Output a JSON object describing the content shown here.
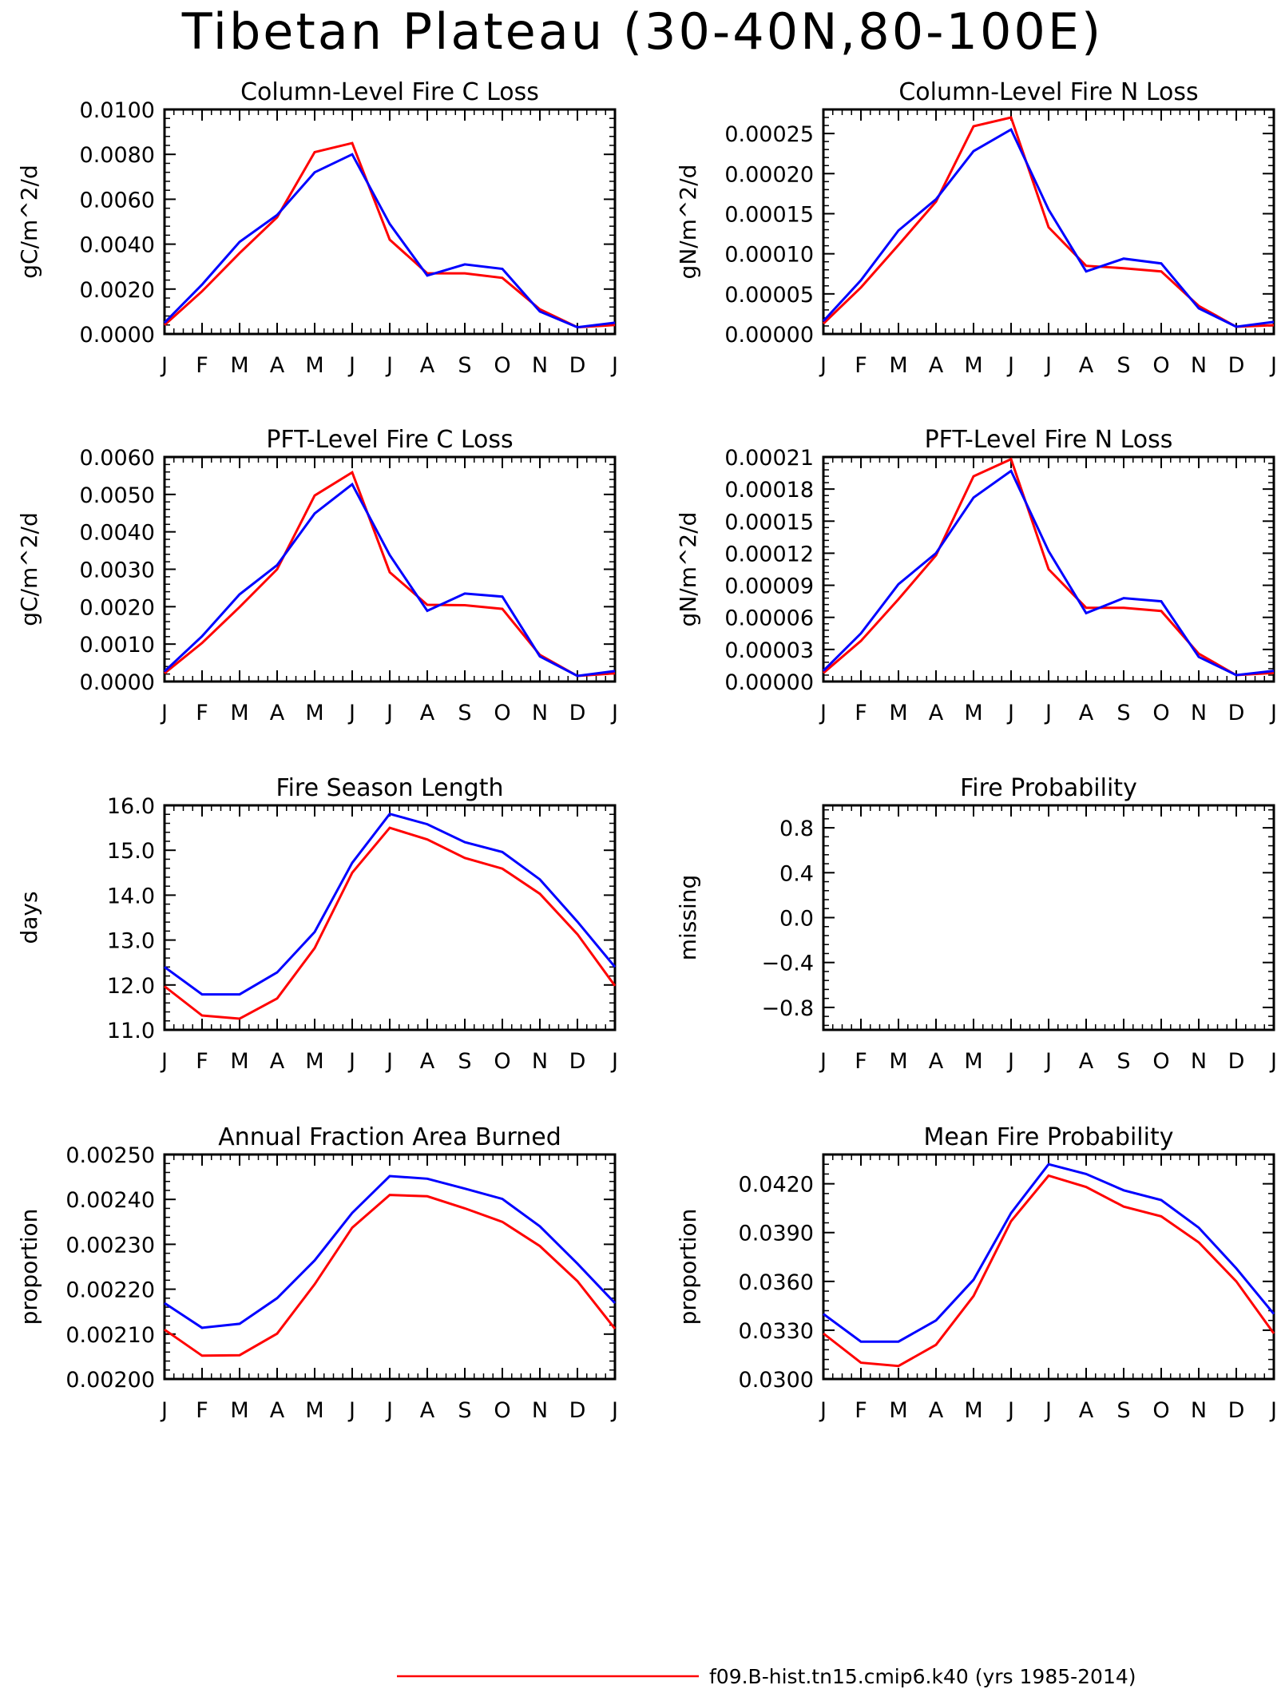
{
  "title": "Tibetan Plateau (30-40N,80-100E)",
  "colors": {
    "red": "#ff0000",
    "blue": "#0000ff"
  },
  "legend": {
    "red_label": "f09.B-hist.tn15.cmip6.k40 (yrs 1985-2014)"
  },
  "chart_data": [
    {
      "type": "line",
      "title": "Column-Level Fire C Loss",
      "ylabel": "gC/m^2/d",
      "categories": [
        "J",
        "F",
        "M",
        "A",
        "M",
        "J",
        "J",
        "A",
        "S",
        "O",
        "N",
        "D",
        "J"
      ],
      "ylim": [
        0,
        0.01
      ],
      "yticks": [
        "0.0000",
        "0.0020",
        "0.0040",
        "0.0060",
        "0.0080",
        "0.0100"
      ],
      "series": [
        {
          "color": "red",
          "values": [
            0.0004,
            0.0019,
            0.0036,
            0.0052,
            0.0081,
            0.0085,
            0.0042,
            0.0027,
            0.0027,
            0.0025,
            0.0011,
            0.0003,
            0.0004
          ]
        },
        {
          "color": "blue",
          "values": [
            0.0005,
            0.0022,
            0.0041,
            0.0053,
            0.0072,
            0.008,
            0.0049,
            0.0026,
            0.0031,
            0.0029,
            0.001,
            0.0003,
            0.0005
          ]
        }
      ]
    },
    {
      "type": "line",
      "title": "Column-Level Fire N Loss",
      "ylabel": "gN/m^2/d",
      "categories": [
        "J",
        "F",
        "M",
        "A",
        "M",
        "J",
        "J",
        "A",
        "S",
        "O",
        "N",
        "D",
        "J"
      ],
      "ylim": [
        0,
        0.00028
      ],
      "yticks": [
        "0.00000",
        "0.00005",
        "0.00010",
        "0.00015",
        "0.00020",
        "0.00025"
      ],
      "series": [
        {
          "color": "red",
          "values": [
            1.3e-05,
            5.8e-05,
            0.000111,
            0.000165,
            0.000259,
            0.00027,
            0.000133,
            8.5e-05,
            8.2e-05,
            7.8e-05,
            3.5e-05,
            9e-06,
            1.1e-05
          ]
        },
        {
          "color": "blue",
          "values": [
            1.6e-05,
            6.7e-05,
            0.000129,
            0.000168,
            0.000228,
            0.000255,
            0.000155,
            7.8e-05,
            9.4e-05,
            8.8e-05,
            3.2e-05,
            9e-06,
            1.5e-05
          ]
        }
      ]
    },
    {
      "type": "line",
      "title": "PFT-Level Fire C Loss",
      "ylabel": "gC/m^2/d",
      "categories": [
        "J",
        "F",
        "M",
        "A",
        "M",
        "J",
        "J",
        "A",
        "S",
        "O",
        "N",
        "D",
        "J"
      ],
      "ylim": [
        0,
        0.006
      ],
      "yticks": [
        "0.0000",
        "0.0010",
        "0.0020",
        "0.0030",
        "0.0040",
        "0.0050",
        "0.0060"
      ],
      "series": [
        {
          "color": "red",
          "values": [
            0.00022,
            0.00103,
            0.00199,
            0.003,
            0.00497,
            0.00559,
            0.00292,
            0.00205,
            0.00204,
            0.00194,
            0.00071,
            0.00015,
            0.00022
          ]
        },
        {
          "color": "blue",
          "values": [
            0.00027,
            0.00121,
            0.00233,
            0.00311,
            0.00449,
            0.00527,
            0.00338,
            0.00189,
            0.00235,
            0.00227,
            0.00067,
            0.00015,
            0.00028
          ]
        }
      ]
    },
    {
      "type": "line",
      "title": "PFT-Level Fire N Loss",
      "ylabel": "gN/m^2/d",
      "categories": [
        "J",
        "F",
        "M",
        "A",
        "M",
        "J",
        "J",
        "A",
        "S",
        "O",
        "N",
        "D",
        "J"
      ],
      "ylim": [
        0,
        0.00021
      ],
      "yticks": [
        "0.00000",
        "0.00003",
        "0.00006",
        "0.00009",
        "0.00012",
        "0.00015",
        "0.00018",
        "0.00021"
      ],
      "series": [
        {
          "color": "red",
          "values": [
            8e-06,
            3.8e-05,
            7.7e-05,
            0.000118,
            0.000192,
            0.000208,
            0.000105,
            6.9e-05,
            6.9e-05,
            6.6e-05,
            2.6e-05,
            6e-06,
            8e-06
          ]
        },
        {
          "color": "blue",
          "values": [
            1e-05,
            4.5e-05,
            9.1e-05,
            0.00012,
            0.000172,
            0.000197,
            0.000122,
            6.4e-05,
            7.8e-05,
            7.5e-05,
            2.3e-05,
            6e-06,
            1e-05
          ]
        }
      ]
    },
    {
      "type": "line",
      "title": "Fire Season Length",
      "ylabel": "days",
      "categories": [
        "J",
        "F",
        "M",
        "A",
        "M",
        "J",
        "J",
        "A",
        "S",
        "O",
        "N",
        "D",
        "J"
      ],
      "ylim": [
        11,
        16
      ],
      "yticks": [
        "11.0",
        "12.0",
        "13.0",
        "14.0",
        "15.0",
        "16.0"
      ],
      "series": [
        {
          "color": "red",
          "values": [
            11.97,
            11.32,
            11.25,
            11.7,
            12.82,
            14.5,
            15.5,
            15.24,
            14.83,
            14.59,
            14.03,
            13.13,
            11.98
          ]
        },
        {
          "color": "blue",
          "values": [
            12.4,
            11.79,
            11.79,
            12.28,
            13.18,
            14.72,
            15.81,
            15.58,
            15.18,
            14.96,
            14.35,
            13.41,
            12.4
          ]
        }
      ]
    },
    {
      "type": "line",
      "title": "Fire Probability",
      "ylabel": "missing",
      "categories": [
        "J",
        "F",
        "M",
        "A",
        "M",
        "J",
        "J",
        "A",
        "S",
        "O",
        "N",
        "D",
        "J"
      ],
      "ylim": [
        -1,
        1
      ],
      "yticks": [
        "-0.8",
        "-0.4",
        "0.0",
        "0.4",
        "0.8"
      ],
      "series": []
    },
    {
      "type": "line",
      "title": "Annual Fraction Area Burned",
      "ylabel": "proportion",
      "categories": [
        "J",
        "F",
        "M",
        "A",
        "M",
        "J",
        "J",
        "A",
        "S",
        "O",
        "N",
        "D",
        "J"
      ],
      "ylim": [
        0.002,
        0.0025
      ],
      "yticks": [
        "0.00200",
        "0.00210",
        "0.00220",
        "0.00230",
        "0.00240",
        "0.00250"
      ],
      "series": [
        {
          "color": "red",
          "values": [
            0.00211,
            0.002052,
            0.002053,
            0.002101,
            0.002211,
            0.002337,
            0.00241,
            0.002407,
            0.00238,
            0.00235,
            0.002296,
            0.002218,
            0.002112
          ]
        },
        {
          "color": "blue",
          "values": [
            0.002169,
            0.002114,
            0.002123,
            0.00218,
            0.002264,
            0.00237,
            0.002452,
            0.002446,
            0.002424,
            0.002401,
            0.00234,
            0.002257,
            0.002169
          ]
        }
      ]
    },
    {
      "type": "line",
      "title": "Mean Fire Probability",
      "ylabel": "proportion",
      "categories": [
        "J",
        "F",
        "M",
        "A",
        "M",
        "J",
        "J",
        "A",
        "S",
        "O",
        "N",
        "D",
        "J"
      ],
      "ylim": [
        0.03,
        0.0438
      ],
      "yticks": [
        "0.0300",
        "0.0330",
        "0.0360",
        "0.0390",
        "0.0420"
      ],
      "series": [
        {
          "color": "red",
          "values": [
            0.0328,
            0.031,
            0.0308,
            0.0321,
            0.0351,
            0.0397,
            0.0425,
            0.0418,
            0.0406,
            0.04,
            0.0384,
            0.036,
            0.0328
          ]
        },
        {
          "color": "blue",
          "values": [
            0.034,
            0.0323,
            0.0323,
            0.0336,
            0.0361,
            0.0402,
            0.0432,
            0.0426,
            0.0416,
            0.041,
            0.0393,
            0.0368,
            0.034
          ]
        }
      ]
    }
  ]
}
